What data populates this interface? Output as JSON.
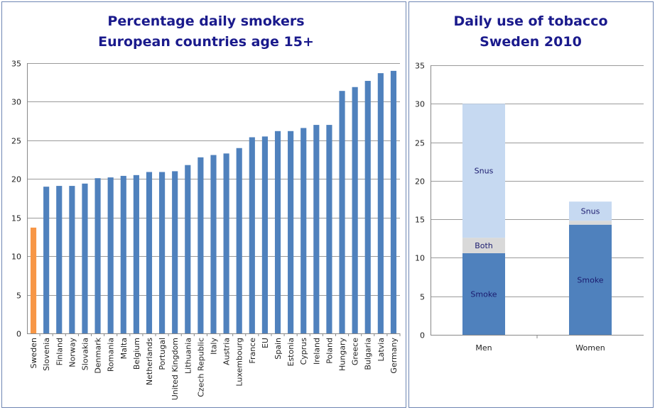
{
  "colors": {
    "bar": "#4f81bd",
    "highlight": "#f79646",
    "smoke": "#4f81bd",
    "both": "#d9d9d9",
    "snus": "#c6d9f1"
  },
  "chart_data": [
    {
      "type": "bar",
      "title_lines": [
        "Percentage daily smokers",
        "European countries age 15+"
      ],
      "xlabel": "",
      "ylabel": "",
      "ylim": [
        0,
        35
      ],
      "yticks": [
        0,
        5,
        10,
        15,
        20,
        25,
        30,
        35
      ],
      "grid": true,
      "highlight_category": "Sweden",
      "categories": [
        "Sweden",
        "Slovenia",
        "Finland",
        "Norway",
        "Slovakia",
        "Denmark",
        "Romania",
        "Malta",
        "Belgium",
        "Netherlands",
        "Portugal",
        "United Kingdom",
        "Lithuania",
        "Czech Republic",
        "Italy",
        "Austria",
        "Luxembourg",
        "France",
        "EU",
        "Spain",
        "Estonia",
        "Cyprus",
        "Ireland",
        "Poland",
        "Hungary",
        "Greece",
        "Bulgaria",
        "Latvia",
        "Germany"
      ],
      "values": [
        13.7,
        19.0,
        19.1,
        19.1,
        19.4,
        20.1,
        20.2,
        20.4,
        20.5,
        20.9,
        20.9,
        21.0,
        21.8,
        22.8,
        23.1,
        23.3,
        24.0,
        25.4,
        25.5,
        26.2,
        26.2,
        26.6,
        27.0,
        27.0,
        31.4,
        31.9,
        32.7,
        33.7,
        34.0
      ]
    },
    {
      "type": "bar",
      "stacked": true,
      "title_lines": [
        "Daily use of tobacco",
        "Sweden 2010"
      ],
      "xlabel": "",
      "ylabel": "",
      "ylim": [
        0,
        35
      ],
      "yticks": [
        0,
        5,
        10,
        15,
        20,
        25,
        30,
        35
      ],
      "grid": true,
      "categories": [
        "Men",
        "Women"
      ],
      "series": [
        {
          "name": "Smoke",
          "values": [
            10.6,
            14.3
          ]
        },
        {
          "name": "Both",
          "values": [
            2.0,
            0.5
          ]
        },
        {
          "name": "Snus",
          "values": [
            17.4,
            2.5
          ]
        }
      ],
      "segment_labels": [
        [
          "Smoke",
          "Both",
          "Snus"
        ],
        [
          "Smoke",
          "",
          "Snus"
        ]
      ]
    }
  ]
}
